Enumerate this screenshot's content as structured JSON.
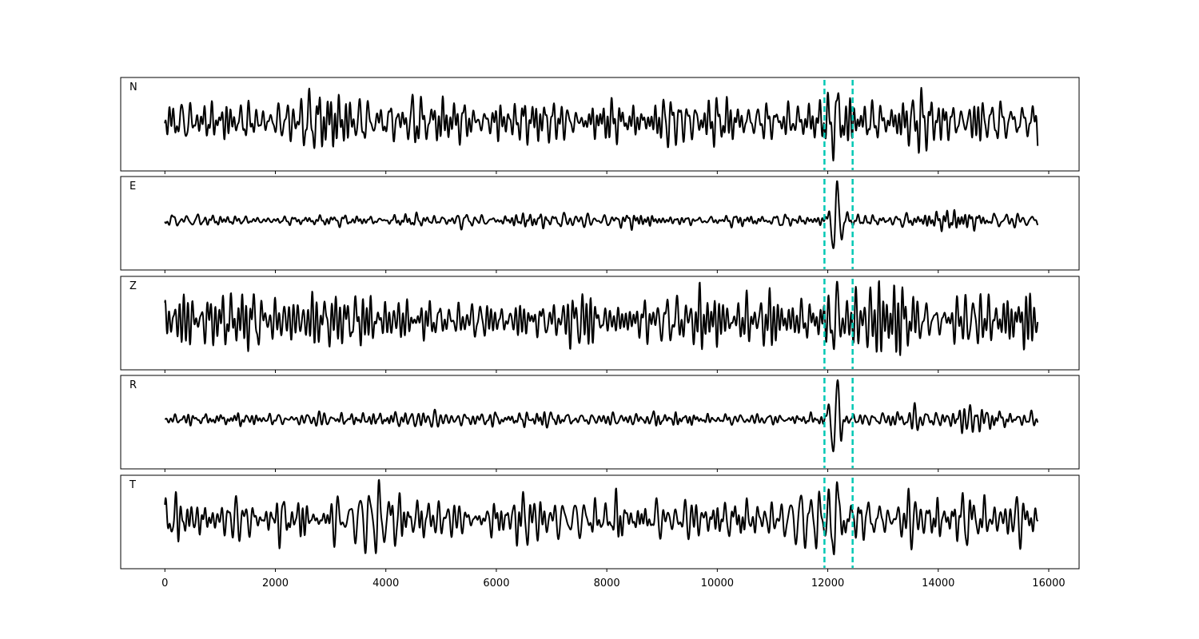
{
  "chart_data": {
    "type": "line",
    "title": "",
    "xlabel": "",
    "ylabel": "",
    "xlim": [
      -800,
      16550
    ],
    "x_start": 0,
    "x_end": 15800,
    "xticks": [
      0,
      2000,
      4000,
      6000,
      8000,
      10000,
      12000,
      14000,
      16000
    ],
    "xtick_labels": [
      "0",
      "2000",
      "4000",
      "6000",
      "8000",
      "10000",
      "12000",
      "14000",
      "16000"
    ],
    "line_color": "#000000",
    "marker_color": "#00c8b4",
    "markers": [
      11940,
      12450
    ],
    "grid": false,
    "panels": [
      {
        "label": "N",
        "seed": 11,
        "amp": 0.8,
        "event_amp": 0.55,
        "late_amp": 1.0
      },
      {
        "label": "E",
        "seed": 23,
        "amp": 0.3,
        "event_amp": 0.95,
        "late_amp": 0.55
      },
      {
        "label": "Z",
        "seed": 37,
        "amp": 0.6,
        "event_amp": 0.45,
        "late_amp": 0.8
      },
      {
        "label": "R",
        "seed": 41,
        "amp": 0.3,
        "event_amp": 1.0,
        "late_amp": 0.55
      },
      {
        "label": "T",
        "seed": 53,
        "amp": 0.8,
        "event_amp": 0.7,
        "late_amp": 0.95
      }
    ]
  }
}
